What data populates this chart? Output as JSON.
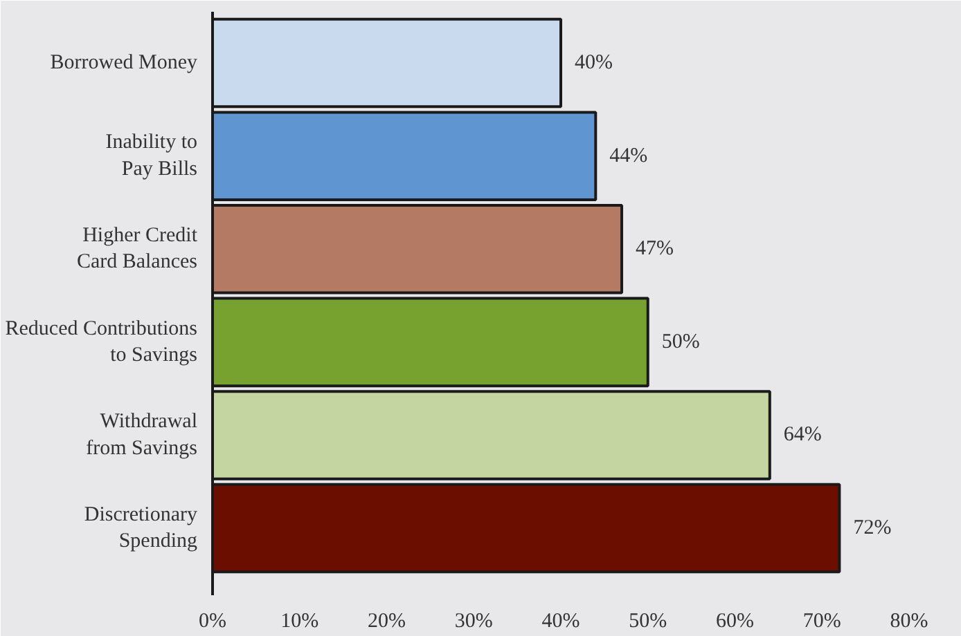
{
  "chart_data": {
    "type": "bar",
    "orientation": "horizontal",
    "categories": [
      "Borrowed Money",
      "Inability to\nPay Bills",
      "Higher Credit\nCard Balances",
      "Reduced Contributions\nto Savings",
      "Withdrawal\nfrom Savings",
      "Discretionary\nSpending"
    ],
    "values": [
      40,
      44,
      47,
      50,
      64,
      72
    ],
    "colors": [
      "#c9d9ee",
      "#5f96d2",
      "#b57a64",
      "#78a22f",
      "#c4d5a2",
      "#6b0e00"
    ],
    "value_labels": [
      "40%",
      "44%",
      "47%",
      "50%",
      "64%",
      "72%"
    ],
    "xlim": [
      0,
      80
    ],
    "xticks": [
      {
        "value": 0,
        "label": "0%"
      },
      {
        "value": 10,
        "label": "10%"
      },
      {
        "value": 20,
        "label": "20%"
      },
      {
        "value": 30,
        "label": "30%"
      },
      {
        "value": 40,
        "label": "40%"
      },
      {
        "value": 50,
        "label": "50%"
      },
      {
        "value": 60,
        "label": "60%"
      },
      {
        "value": 70,
        "label": "70%"
      },
      {
        "value": 80,
        "label": "80%"
      }
    ]
  }
}
